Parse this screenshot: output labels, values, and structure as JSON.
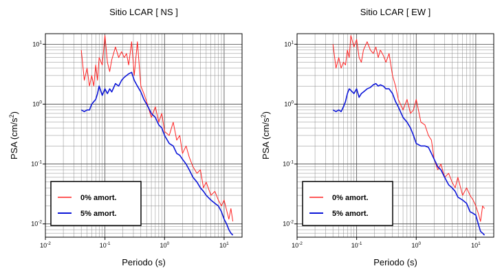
{
  "chart_data": [
    {
      "type": "line",
      "title": "Sitio LCAR [ NS ]",
      "xlabel": "Periodo (s)",
      "ylabel_main": "PSA (cm/s",
      "ylabel_sup": "2",
      "ylabel_close": ")",
      "xscale": "log",
      "yscale": "log",
      "xlim": [
        0.01,
        20
      ],
      "ylim": [
        0.006,
        15
      ],
      "grid": true,
      "legend_position": "bottom-left",
      "x_ticks": [
        {
          "value": 0.01,
          "base": "10",
          "exp": "-2"
        },
        {
          "value": 0.1,
          "base": "10",
          "exp": "-1"
        },
        {
          "value": 1,
          "base": "10",
          "exp": "0"
        },
        {
          "value": 10,
          "base": "10",
          "exp": "1"
        }
      ],
      "y_ticks": [
        {
          "value": 0.01,
          "base": "10",
          "exp": "-2"
        },
        {
          "value": 0.1,
          "base": "10",
          "exp": "-1"
        },
        {
          "value": 1,
          "base": "10",
          "exp": "0"
        },
        {
          "value": 10,
          "base": "10",
          "exp": "1"
        }
      ],
      "series": [
        {
          "name": "0% amort.",
          "color": "#ff2020",
          "x": [
            0.04,
            0.045,
            0.05,
            0.055,
            0.06,
            0.065,
            0.07,
            0.075,
            0.08,
            0.09,
            0.1,
            0.11,
            0.12,
            0.13,
            0.15,
            0.17,
            0.19,
            0.21,
            0.23,
            0.25,
            0.28,
            0.31,
            0.35,
            0.4,
            0.45,
            0.5,
            0.6,
            0.7,
            0.8,
            0.9,
            1.0,
            1.2,
            1.4,
            1.6,
            1.8,
            2.0,
            2.3,
            2.6,
            3.0,
            3.5,
            4.0,
            4.5,
            5.0,
            6.0,
            7.0,
            8.0,
            9.0,
            10.0,
            11.0,
            12.0,
            13.0,
            14.0
          ],
          "y": [
            8.0,
            2.5,
            4.0,
            2.0,
            3.0,
            2.0,
            4.5,
            2.5,
            6.0,
            4.5,
            14.0,
            5.0,
            3.5,
            5.5,
            9.0,
            6.0,
            7.5,
            6.0,
            7.0,
            4.5,
            11.0,
            3.0,
            11.0,
            2.0,
            1.5,
            1.1,
            0.6,
            0.9,
            0.5,
            0.7,
            0.35,
            0.3,
            0.5,
            0.25,
            0.3,
            0.15,
            0.2,
            0.13,
            0.09,
            0.07,
            0.08,
            0.04,
            0.05,
            0.03,
            0.035,
            0.025,
            0.02,
            0.025,
            0.017,
            0.012,
            0.018,
            0.011
          ]
        },
        {
          "name": "5% amort.",
          "color": "#0a14d8",
          "x": [
            0.04,
            0.045,
            0.05,
            0.055,
            0.06,
            0.065,
            0.07,
            0.075,
            0.08,
            0.09,
            0.1,
            0.11,
            0.12,
            0.13,
            0.15,
            0.17,
            0.19,
            0.21,
            0.23,
            0.25,
            0.28,
            0.31,
            0.35,
            0.4,
            0.45,
            0.5,
            0.6,
            0.7,
            0.8,
            0.9,
            1.0,
            1.2,
            1.4,
            1.6,
            1.8,
            2.0,
            2.3,
            2.6,
            3.0,
            3.5,
            4.0,
            4.5,
            5.0,
            6.0,
            7.0,
            8.0,
            9.0,
            10.0,
            11.0,
            12.0,
            13.0,
            14.0
          ],
          "y": [
            0.8,
            0.75,
            0.8,
            0.8,
            1.0,
            1.1,
            1.2,
            1.5,
            2.0,
            1.4,
            1.8,
            1.5,
            1.8,
            1.6,
            2.2,
            2.0,
            2.5,
            2.8,
            3.0,
            3.2,
            3.4,
            2.5,
            2.0,
            1.6,
            1.2,
            1.0,
            0.7,
            0.6,
            0.45,
            0.4,
            0.3,
            0.22,
            0.2,
            0.15,
            0.14,
            0.12,
            0.1,
            0.08,
            0.06,
            0.05,
            0.04,
            0.035,
            0.03,
            0.025,
            0.022,
            0.02,
            0.016,
            0.012,
            0.01,
            0.008,
            0.007,
            0.0065
          ]
        }
      ]
    },
    {
      "type": "line",
      "title": "Sitio LCAR [ EW ]",
      "xlabel": "Periodo (s)",
      "ylabel_main": "PSA (cm/s",
      "ylabel_sup": "2",
      "ylabel_close": ")",
      "xscale": "log",
      "yscale": "log",
      "xlim": [
        0.01,
        20
      ],
      "ylim": [
        0.006,
        15
      ],
      "grid": true,
      "legend_position": "bottom-left",
      "x_ticks": [
        {
          "value": 0.01,
          "base": "10",
          "exp": "-2"
        },
        {
          "value": 0.1,
          "base": "10",
          "exp": "-1"
        },
        {
          "value": 1,
          "base": "10",
          "exp": "0"
        },
        {
          "value": 10,
          "base": "10",
          "exp": "1"
        }
      ],
      "y_ticks": [
        {
          "value": 0.01,
          "base": "10",
          "exp": "-2"
        },
        {
          "value": 0.1,
          "base": "10",
          "exp": "-1"
        },
        {
          "value": 1,
          "base": "10",
          "exp": "0"
        },
        {
          "value": 10,
          "base": "10",
          "exp": "1"
        }
      ],
      "series": [
        {
          "name": "0% amort.",
          "color": "#ff2020",
          "x": [
            0.04,
            0.045,
            0.05,
            0.055,
            0.06,
            0.065,
            0.07,
            0.075,
            0.08,
            0.09,
            0.1,
            0.11,
            0.12,
            0.13,
            0.15,
            0.17,
            0.19,
            0.21,
            0.23,
            0.25,
            0.28,
            0.31,
            0.35,
            0.4,
            0.45,
            0.5,
            0.6,
            0.7,
            0.8,
            0.9,
            1.0,
            1.2,
            1.4,
            1.6,
            1.8,
            2.0,
            2.3,
            2.6,
            3.0,
            3.5,
            4.0,
            4.5,
            5.0,
            6.0,
            7.0,
            8.0,
            9.0,
            10.0,
            11.0,
            12.0,
            13.0,
            14.0
          ],
          "y": [
            10.0,
            4.0,
            6.0,
            4.0,
            5.0,
            4.5,
            8.0,
            6.0,
            14.0,
            9.0,
            12.0,
            6.0,
            5.0,
            8.0,
            11.0,
            8.0,
            7.0,
            9.0,
            6.0,
            8.0,
            6.5,
            5.0,
            7.0,
            3.0,
            2.0,
            1.2,
            0.8,
            1.2,
            0.7,
            0.8,
            1.2,
            0.5,
            0.45,
            0.3,
            0.25,
            0.12,
            0.08,
            0.1,
            0.06,
            0.07,
            0.05,
            0.04,
            0.06,
            0.03,
            0.04,
            0.03,
            0.025,
            0.02,
            0.015,
            0.011,
            0.02,
            0.018
          ]
        },
        {
          "name": "5% amort.",
          "color": "#0a14d8",
          "x": [
            0.04,
            0.045,
            0.05,
            0.055,
            0.06,
            0.065,
            0.07,
            0.075,
            0.08,
            0.09,
            0.1,
            0.11,
            0.12,
            0.13,
            0.15,
            0.17,
            0.19,
            0.21,
            0.23,
            0.25,
            0.28,
            0.31,
            0.35,
            0.4,
            0.45,
            0.5,
            0.6,
            0.7,
            0.8,
            0.9,
            1.0,
            1.2,
            1.4,
            1.6,
            1.8,
            2.0,
            2.3,
            2.6,
            3.0,
            3.5,
            4.0,
            4.5,
            5.0,
            6.0,
            7.0,
            8.0,
            9.0,
            10.0,
            11.0,
            12.0,
            13.0,
            14.0
          ],
          "y": [
            0.8,
            0.75,
            0.8,
            0.75,
            0.9,
            1.1,
            1.5,
            1.8,
            1.7,
            1.5,
            1.8,
            1.3,
            1.5,
            1.6,
            1.8,
            1.9,
            2.1,
            2.2,
            2.0,
            2.1,
            2.0,
            1.8,
            1.8,
            1.5,
            1.1,
            0.9,
            0.6,
            0.5,
            0.4,
            0.3,
            0.22,
            0.2,
            0.2,
            0.19,
            0.15,
            0.12,
            0.09,
            0.08,
            0.06,
            0.045,
            0.04,
            0.035,
            0.028,
            0.025,
            0.022,
            0.016,
            0.015,
            0.014,
            0.01,
            0.0075,
            0.007,
            0.0065
          ]
        }
      ]
    }
  ]
}
